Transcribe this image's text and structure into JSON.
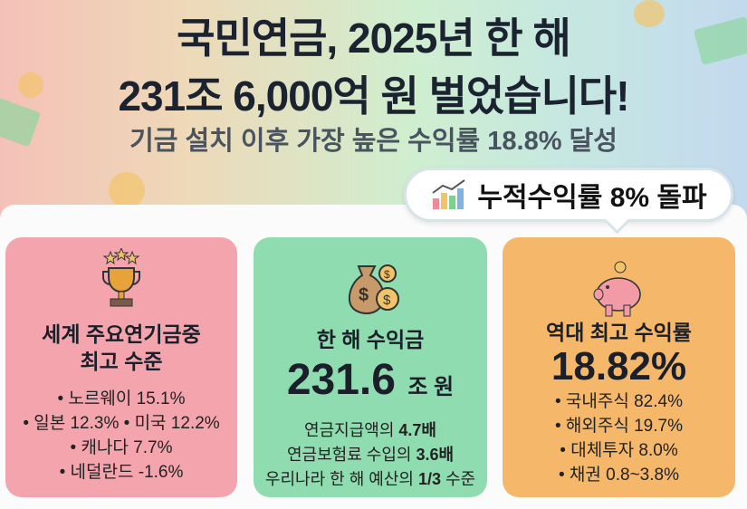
{
  "header": {
    "title_line1": "국민연금, 2025년 한 해",
    "title_line2": "231조 6,000억 원 벌었습니다!",
    "subtitle": "기금 설치 이후 가장 높은 수익률 18.8% 달성"
  },
  "badge": {
    "label": "누적수익률 8% 돌파",
    "icon": "bar-chart-icon"
  },
  "cards": [
    {
      "icon": "trophy-icon",
      "title_line1": "세계 주요연기금중",
      "title_line2": "최고 수준",
      "items": [
        "• 노르웨이 15.1%",
        "• 일본 12.3%  • 미국 12.2%",
        "• 캐나다 7.7%",
        "• 네덜란드 -1.6%"
      ]
    },
    {
      "icon": "money-bag-icon",
      "title": "한 해 수익금",
      "value": "231.6",
      "unit": "조 원",
      "lines": [
        {
          "text": "연금지급액의 ",
          "bold": "4.7배",
          "tail": ""
        },
        {
          "text": "연금보험료 수입의 ",
          "bold": "3.6배",
          "tail": ""
        },
        {
          "text": "우리나라 한 해 예산의 ",
          "bold": "1/3",
          "tail": " 수준"
        }
      ]
    },
    {
      "icon": "piggy-bank-icon",
      "title": "역대 최고 수익률",
      "value": "18.82%",
      "items": [
        "• 국내주식 82.4%",
        "• 해외주식 19.7%",
        "• 대체투자 8.0%",
        "• 채권 0.8~3.8%"
      ]
    }
  ],
  "colors": {
    "pink": "#f4a4ad",
    "green": "#8fdcb0",
    "orange": "#f5b86a"
  }
}
